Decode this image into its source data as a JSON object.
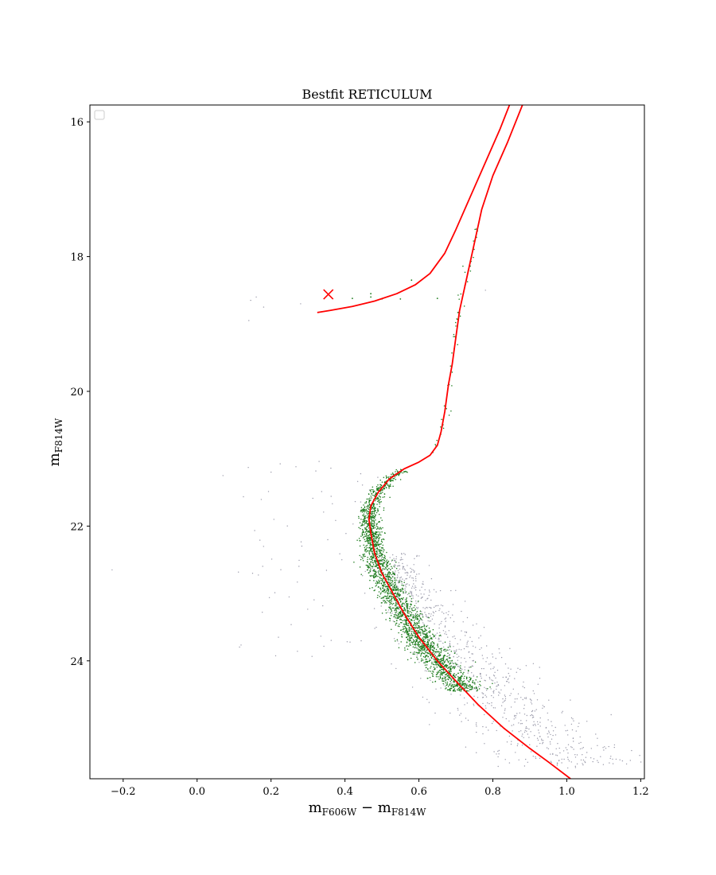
{
  "chart_data": {
    "type": "scatter",
    "title": "Bestfit RETICULUM",
    "xlabel": {
      "base": "m",
      "sub1": "F606W",
      "sep": " − ",
      "base2": "m",
      "sub2": "F814W"
    },
    "ylabel": {
      "base": "m",
      "sub": "F814W"
    },
    "xlim": [
      -0.29,
      1.21
    ],
    "ylim": [
      25.75,
      15.75
    ],
    "y_inverted": true,
    "xticks": [
      -0.2,
      0.0,
      0.2,
      0.4,
      0.6,
      0.8,
      1.0,
      1.2
    ],
    "xtick_labels": [
      "−0.2",
      "0.0",
      "0.2",
      "0.4",
      "0.6",
      "0.8",
      "1.0",
      "1.2"
    ],
    "yticks": [
      16,
      18,
      20,
      22,
      24
    ],
    "ytick_labels": [
      "16",
      "18",
      "20",
      "22",
      "24"
    ],
    "grid": false,
    "legend": {
      "placement": "top-left",
      "entries": []
    },
    "colors": {
      "isochrone": "#ff0000",
      "members": "#1a7a1a",
      "field": "#9a9aaa"
    },
    "isochrone_rgb": [
      [
        0.88,
        15.75
      ],
      [
        0.84,
        16.3
      ],
      [
        0.8,
        16.8
      ],
      [
        0.77,
        17.3
      ],
      [
        0.75,
        17.8
      ],
      [
        0.73,
        18.3
      ],
      [
        0.71,
        18.8
      ],
      [
        0.7,
        19.2
      ],
      [
        0.69,
        19.6
      ],
      [
        0.68,
        19.9
      ],
      [
        0.67,
        20.3
      ],
      [
        0.66,
        20.6
      ],
      [
        0.65,
        20.8
      ],
      [
        0.63,
        20.95
      ],
      [
        0.6,
        21.05
      ],
      [
        0.56,
        21.15
      ],
      [
        0.52,
        21.3
      ],
      [
        0.49,
        21.5
      ],
      [
        0.47,
        21.7
      ],
      [
        0.465,
        21.9
      ],
      [
        0.47,
        22.1
      ],
      [
        0.48,
        22.4
      ],
      [
        0.5,
        22.7
      ],
      [
        0.53,
        23.0
      ],
      [
        0.56,
        23.3
      ],
      [
        0.6,
        23.65
      ],
      [
        0.65,
        24.0
      ],
      [
        0.7,
        24.3
      ],
      [
        0.76,
        24.65
      ],
      [
        0.83,
        25.0
      ],
      [
        0.9,
        25.3
      ],
      [
        0.95,
        25.5
      ],
      [
        1.01,
        25.75
      ]
    ],
    "isochrone_agb": [
      [
        0.845,
        15.75
      ],
      [
        0.82,
        16.1
      ],
      [
        0.78,
        16.6
      ],
      [
        0.74,
        17.1
      ],
      [
        0.7,
        17.6
      ],
      [
        0.67,
        17.95
      ],
      [
        0.63,
        18.25
      ],
      [
        0.59,
        18.42
      ],
      [
        0.54,
        18.55
      ],
      [
        0.48,
        18.66
      ],
      [
        0.42,
        18.74
      ],
      [
        0.36,
        18.8
      ],
      [
        0.325,
        18.83
      ]
    ],
    "hb_marker": [
      0.355,
      18.56
    ]
  }
}
